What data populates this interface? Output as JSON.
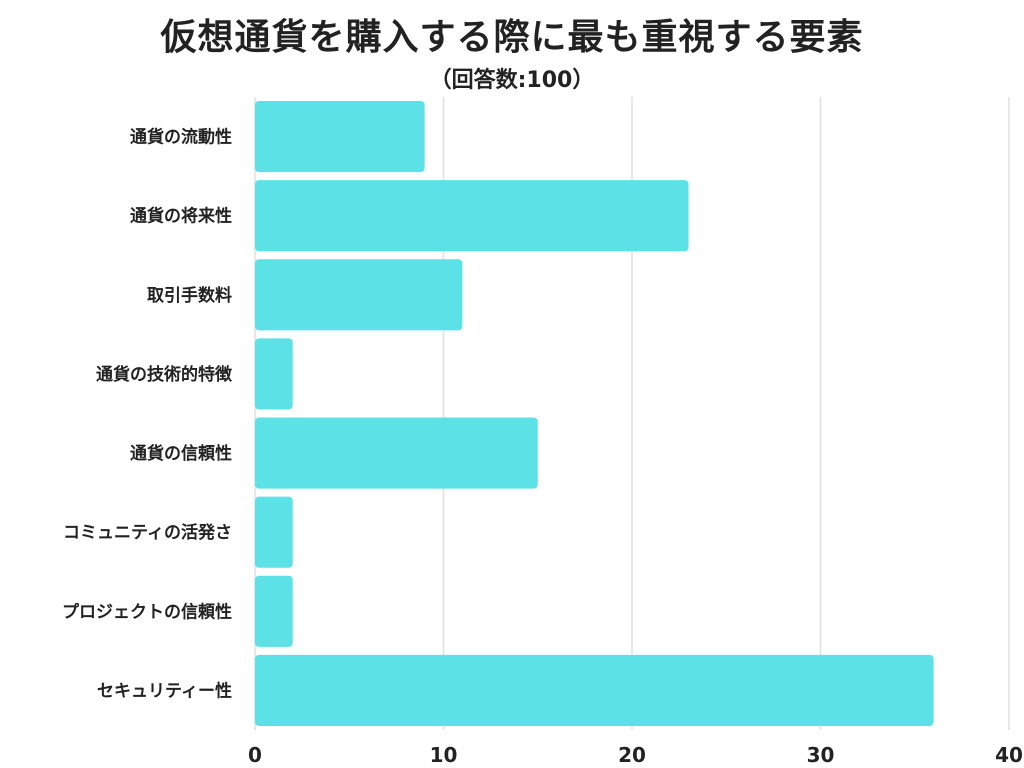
{
  "title": "仮想通貨を購入する際に最も重視する要素",
  "subtitle": "（回答数:100）",
  "chart_data": {
    "type": "bar",
    "orientation": "horizontal",
    "categories": [
      "通貨の流動性",
      "通貨の将来性",
      "取引手数料",
      "通貨の技術的特徴",
      "通貨の信頼性",
      "コミュニティの活発さ",
      "プロジェクトの信頼性",
      "セキュリティー性"
    ],
    "values": [
      9,
      23,
      11,
      2,
      15,
      2,
      2,
      36
    ],
    "xlim": [
      0,
      40
    ],
    "xticks": [
      "0",
      "10",
      "20",
      "30",
      "40"
    ],
    "xtick_values": [
      0,
      10,
      20,
      30,
      40
    ],
    "grid": "vertical",
    "bar_color": "#5ce1e6",
    "grid_color": "#e0e0e0",
    "text_color": "#222222"
  }
}
